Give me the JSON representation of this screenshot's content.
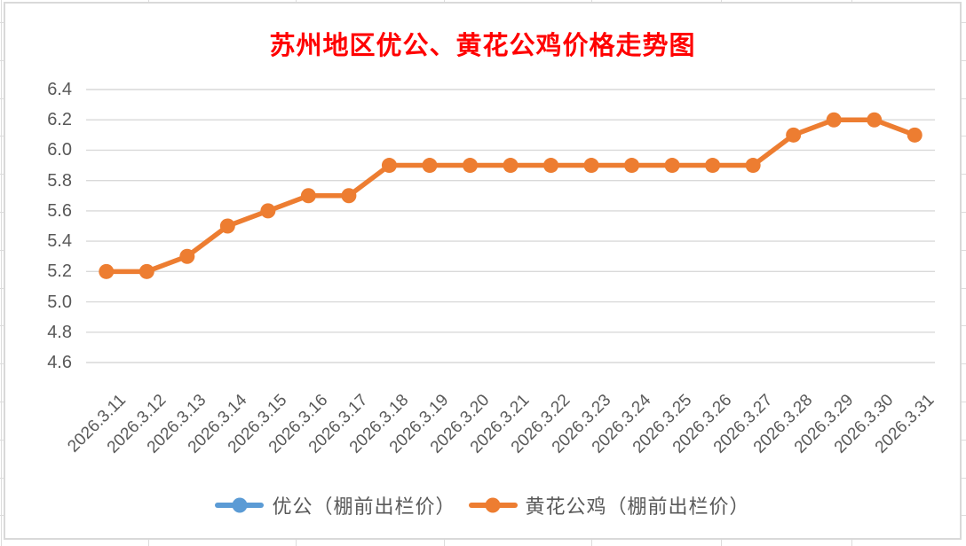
{
  "title": {
    "text": "苏州地区优公、黄花公鸡价格走势图"
  },
  "chart_data": {
    "type": "line",
    "title": "苏州地区优公、黄花公鸡价格走势图",
    "x": [
      "2026.3.11",
      "2026.3.12",
      "2026.3.13",
      "2026.3.14",
      "2026.3.15",
      "2026.3.16",
      "2026.3.17",
      "2026.3.18",
      "2026.3.19",
      "2026.3.20",
      "2026.3.21",
      "2026.3.22",
      "2026.3.23",
      "2026.3.24",
      "2026.3.25",
      "2026.3.26",
      "2026.3.27",
      "2026.3.28",
      "2026.3.29",
      "2026.3.30",
      "2026.3.31"
    ],
    "series": [
      {
        "name": "优公（棚前出栏价）",
        "color": "#5B9BD5",
        "marker": "circle",
        "values": []
      },
      {
        "name": "黄花公鸡（棚前出栏价）",
        "color": "#ED7D31",
        "marker": "circle",
        "values": [
          5.2,
          5.2,
          5.3,
          5.5,
          5.6,
          5.7,
          5.7,
          5.9,
          5.9,
          5.9,
          5.9,
          5.9,
          5.9,
          5.9,
          5.9,
          5.9,
          5.9,
          6.1,
          6.2,
          6.2,
          6.1
        ]
      }
    ],
    "ylim": [
      4.6,
      6.4
    ],
    "ytick_step": 0.2,
    "yticks": [
      "6.4",
      "6.2",
      "6.0",
      "5.8",
      "5.6",
      "5.4",
      "5.2",
      "5.0",
      "4.8",
      "4.6"
    ],
    "xlabel": "",
    "ylabel": "",
    "grid": "horizontal",
    "legend_position": "bottom",
    "colors": {
      "grid": "#D9D9D9",
      "axis_text": "#595959",
      "title_text": "#FF0000",
      "chart_border": "#D9D9D9"
    }
  }
}
